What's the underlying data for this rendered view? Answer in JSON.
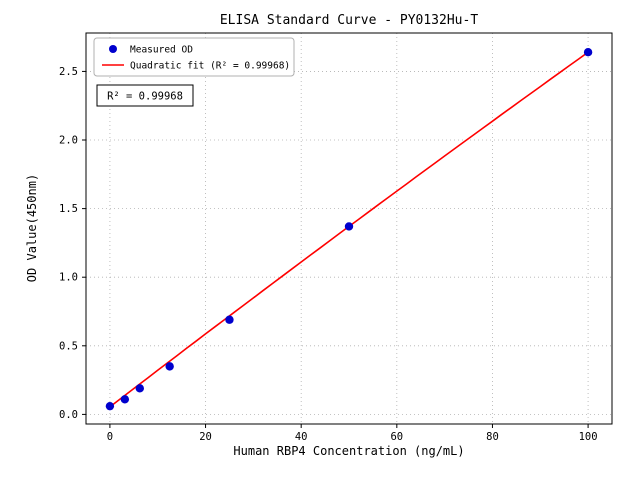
{
  "chart_data": {
    "type": "scatter",
    "title": "ELISA Standard Curve - PY0132Hu-T",
    "xlabel": "Human RBP4 Concentration (ng/mL)",
    "ylabel": "OD Value(450nm)",
    "xlim": [
      -5,
      105
    ],
    "ylim": [
      -0.07,
      2.78
    ],
    "xticks": [
      0,
      20,
      40,
      60,
      80,
      100
    ],
    "yticks": [
      0.0,
      0.5,
      1.0,
      1.5,
      2.0,
      2.5
    ],
    "grid": true,
    "legend_position": "upper-left",
    "series": [
      {
        "name": "Measured OD",
        "type": "scatter",
        "color": "#0000cd",
        "x": [
          0,
          3.125,
          6.25,
          12.5,
          25,
          50,
          100
        ],
        "y": [
          0.06,
          0.11,
          0.19,
          0.35,
          0.69,
          1.37,
          2.64
        ]
      },
      {
        "name": "Quadratic fit (R² = 0.99968)",
        "type": "line",
        "color": "#ff0000",
        "fit": {
          "a": -9e-06,
          "b": 0.02675,
          "c": 0.055
        },
        "x_range": [
          0,
          100
        ]
      }
    ],
    "annotation": "R² = 0.99968",
    "colors": {
      "grid": "#b0b0b0",
      "axis": "#000000",
      "legend_border": "#b0b0b0",
      "annotation_border": "#000000"
    }
  }
}
